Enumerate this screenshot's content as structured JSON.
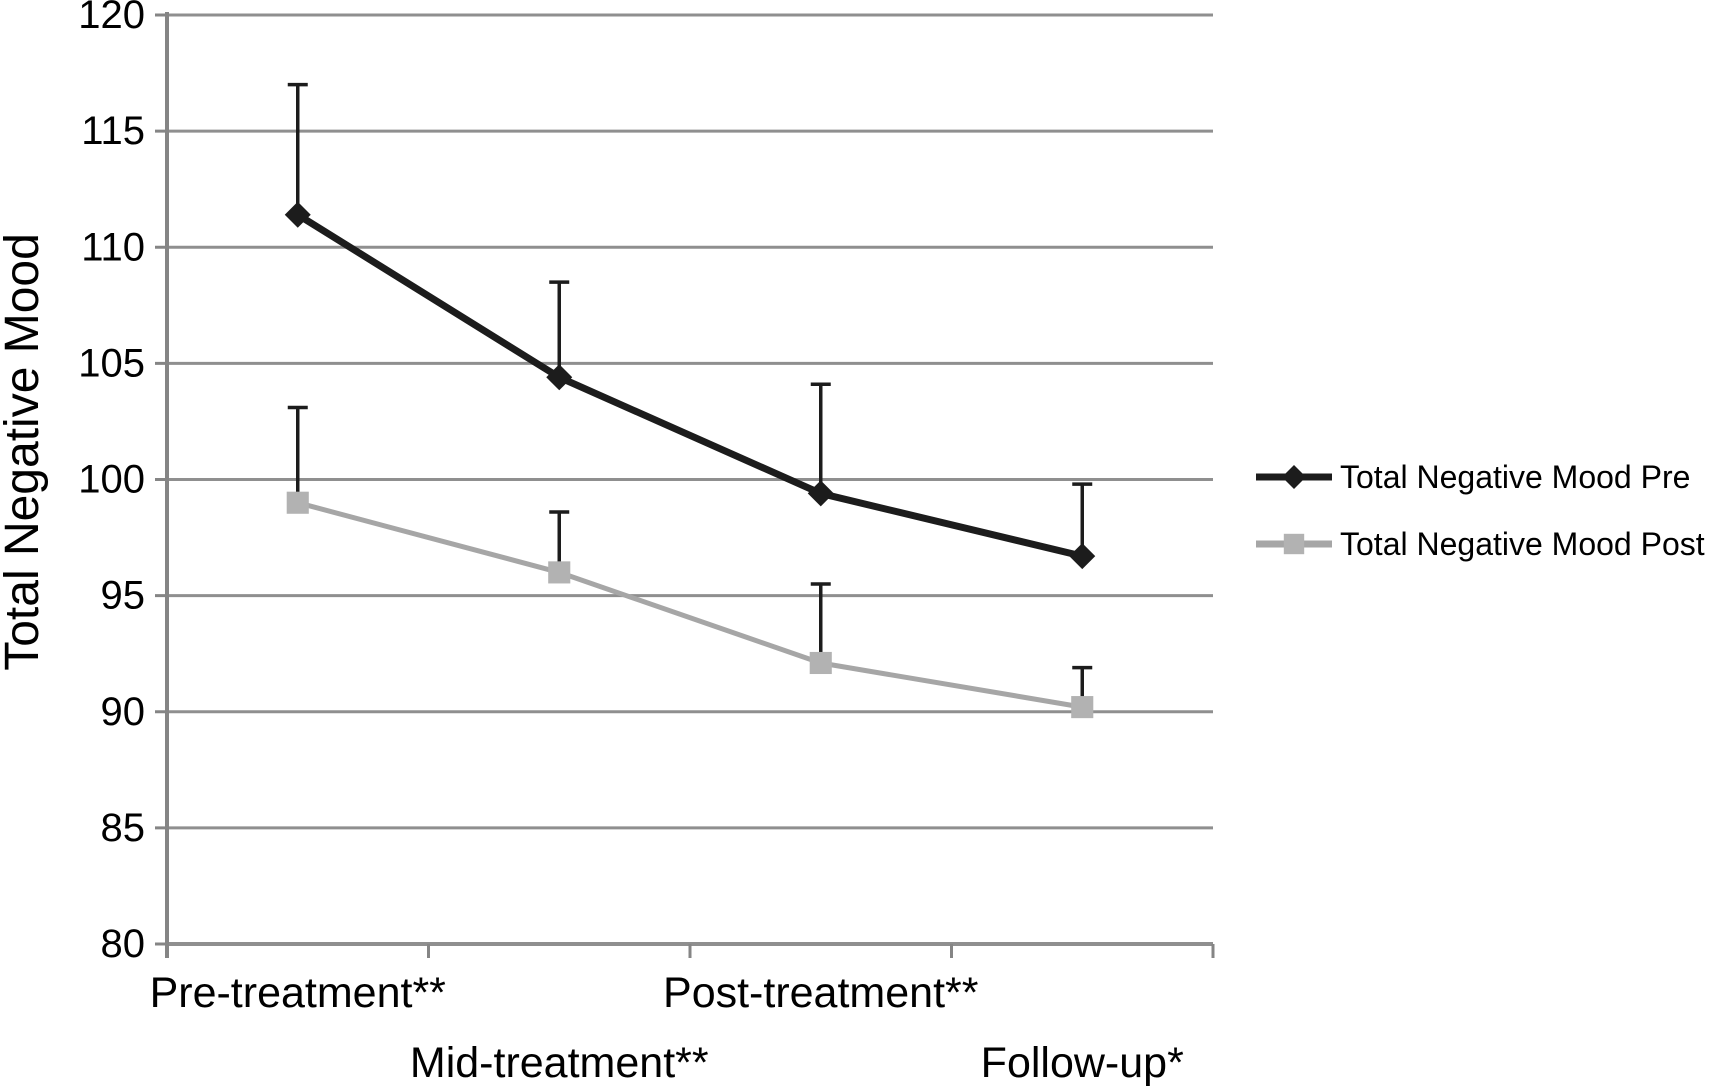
{
  "chart_data": {
    "type": "line",
    "title": "",
    "xlabel": "",
    "ylabel": "Total Negative Mood",
    "categories": [
      "Pre-treatment**",
      "Mid-treatment**",
      "Post-treatment**",
      "Follow-up*"
    ],
    "y_axis": {
      "min": 80,
      "max": 120,
      "step": 5
    },
    "y_tick_labels": [
      "80",
      "85",
      "90",
      "95",
      "100",
      "105",
      "110",
      "115",
      "120"
    ],
    "grid": "horizontal",
    "legend_position": "right",
    "series": [
      {
        "name": "Total Negative Mood Pre",
        "marker": "diamond",
        "color": "#1c1c1c",
        "marker_color": "#1c1c1c",
        "line_width": 7,
        "values": [
          111.4,
          104.4,
          99.4,
          96.7
        ],
        "error_upper": [
          5.6,
          4.1,
          4.7,
          3.1
        ]
      },
      {
        "name": "Total Negative Mood Post",
        "marker": "square",
        "color": "#a6a6a6",
        "marker_color": "#b2b2b2",
        "line_width": 5,
        "values": [
          99.0,
          96.0,
          92.1,
          90.2
        ],
        "error_upper": [
          4.1,
          2.6,
          3.4,
          1.7
        ]
      }
    ],
    "error_bar_color": "#1c1c1c",
    "colors": {
      "grid": "#8f8f8f",
      "axis": "#858585",
      "text": "#000000",
      "background": "#ffffff"
    }
  }
}
